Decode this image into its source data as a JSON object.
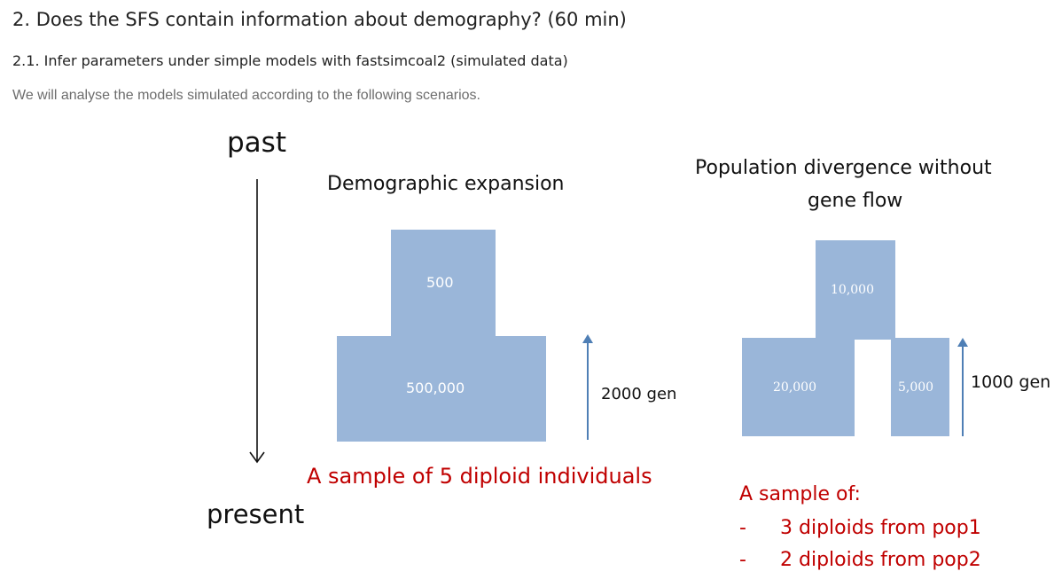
{
  "section": {
    "heading": "2. Does the SFS contain information about demography? (60 min)",
    "subheading": "2.1. Infer parameters under simple models with fastsimcoal2 (simulated data)",
    "intro": "We will analyse the models simulated according to the following scenarios."
  },
  "figure": {
    "time_axis": {
      "top_label": "past",
      "bottom_label": "present"
    },
    "expansion": {
      "title": "Demographic expansion",
      "ancestral_size": "500",
      "current_size": "500,000",
      "time_label": "2000 gen",
      "sample_text": "A sample of 5 diploid individuals"
    },
    "divergence": {
      "title_line1": "Population divergence without",
      "title_line2": "gene flow",
      "ancestral_size": "10,000",
      "pop1_size": "20,000",
      "pop2_size": "5,000",
      "time_label": "1000 gen",
      "sample_heading": "A sample of:",
      "sample_items": [
        {
          "bullet": "-",
          "text": "3 diploids from pop1"
        },
        {
          "bullet": "-",
          "text": "2 diploids from pop2"
        }
      ]
    },
    "colors": {
      "box_fill": "#9ab6d9",
      "arrow": "#4f7fb5",
      "sample_text": "#c00000"
    }
  }
}
